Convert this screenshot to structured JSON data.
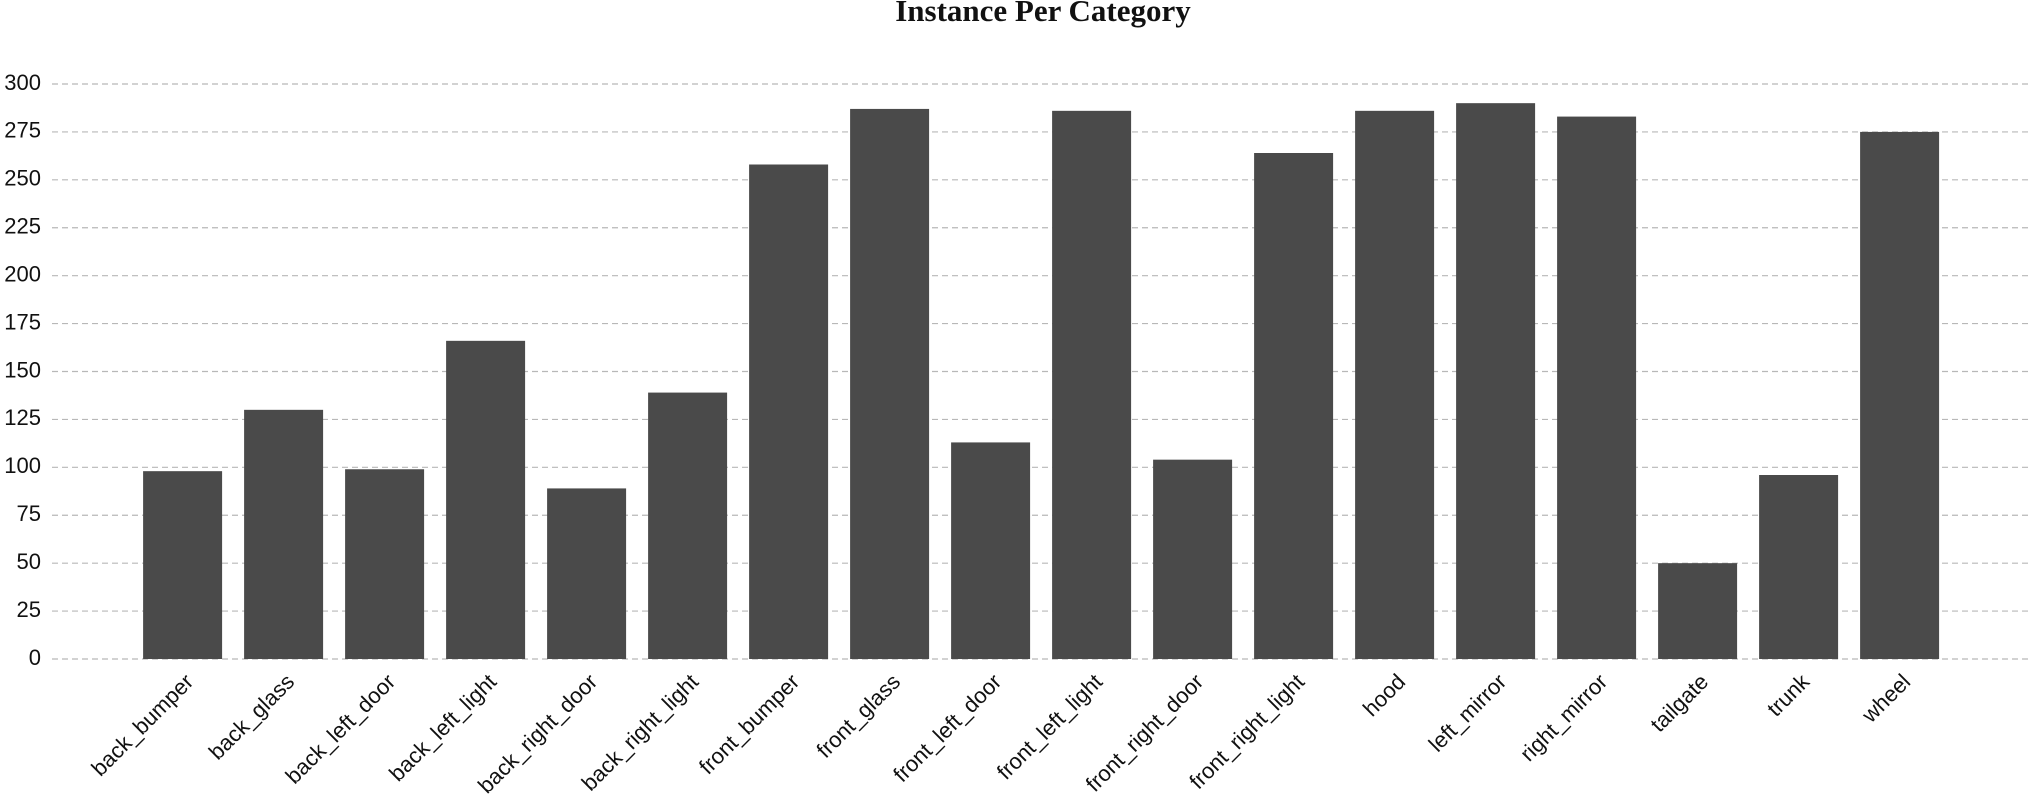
{
  "chart_data": {
    "type": "bar",
    "title": "Instance Per Category",
    "categories": [
      "back_bumper",
      "back_glass",
      "back_left_door",
      "back_left_light",
      "back_right_door",
      "back_right_light",
      "front_bumper",
      "front_glass",
      "front_left_door",
      "front_left_light",
      "front_right_door",
      "front_right_light",
      "hood",
      "left_mirror",
      "right_mirror",
      "tailgate",
      "trunk",
      "wheel"
    ],
    "values": [
      98,
      130,
      99,
      166,
      89,
      139,
      258,
      287,
      113,
      286,
      104,
      264,
      286,
      290,
      283,
      50,
      96,
      275
    ],
    "color": "#4a4a4a",
    "ylim": [
      0,
      300
    ],
    "yticks": [
      0,
      25,
      50,
      75,
      100,
      125,
      150,
      175,
      200,
      225,
      250,
      275,
      300
    ],
    "grid": true
  }
}
